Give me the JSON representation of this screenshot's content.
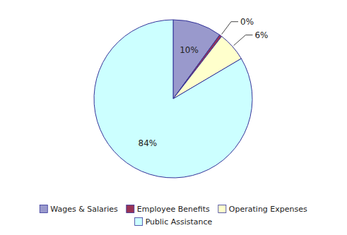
{
  "chart_data": {
    "type": "pie",
    "categories": [
      "Wages & Salaries",
      "Employee Benefits",
      "Operating Expenses",
      "Public Assistance"
    ],
    "values": [
      10,
      0.5,
      6,
      83.5
    ],
    "value_labels": [
      "10%",
      "0%",
      "6%",
      "84%"
    ],
    "colors": [
      "#9999cc",
      "#993355",
      "#ffffcc",
      "#ccffff"
    ],
    "data_labels": true,
    "legend": "bottom"
  }
}
